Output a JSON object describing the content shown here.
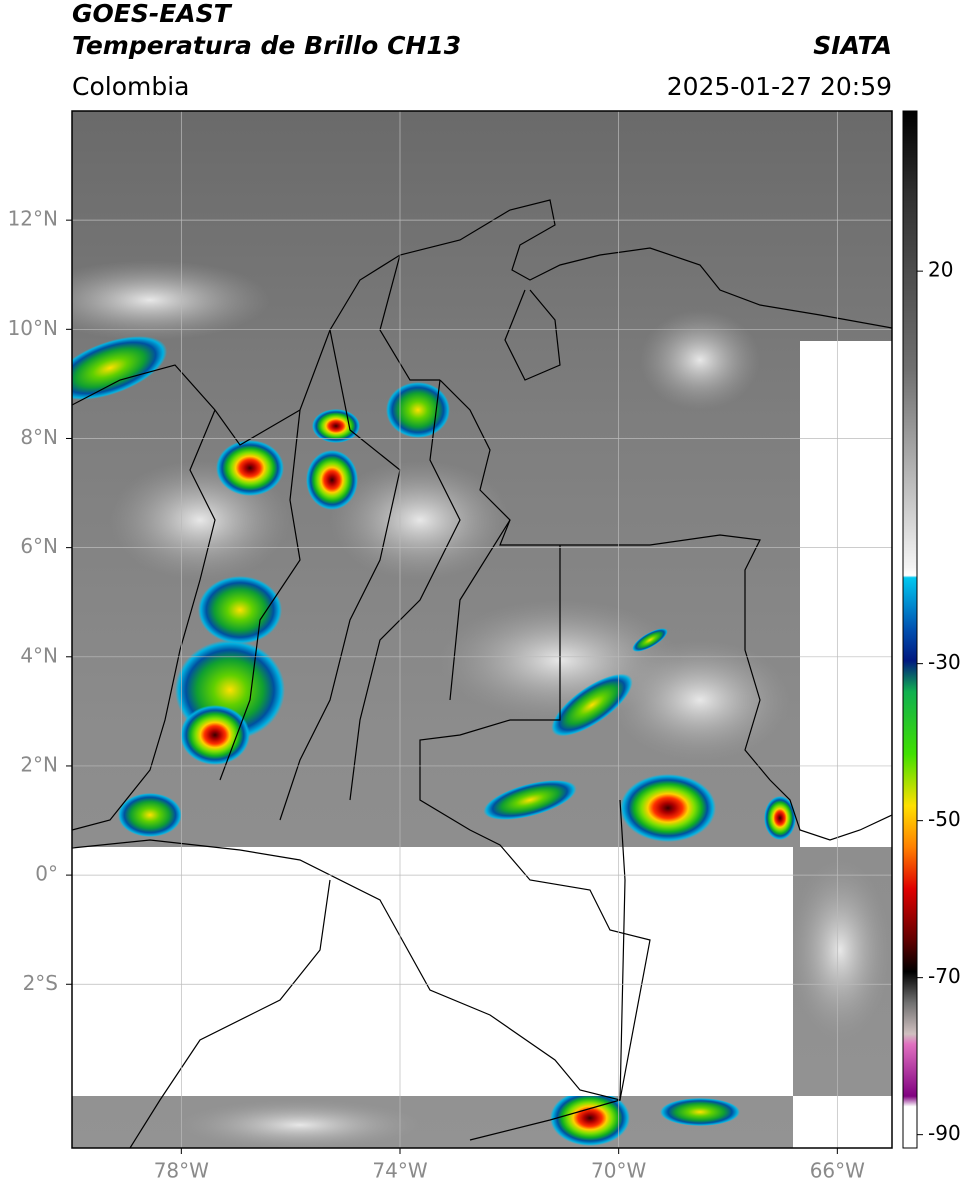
{
  "header": {
    "title": "GOES-EAST",
    "subtitle": "Temperatura de Brillo CH13",
    "region": "Colombia",
    "source": "SIATA",
    "datetime": "2025-01-27 20:59"
  },
  "map": {
    "xlim": [
      -80,
      -65
    ],
    "ylim": [
      -5,
      14
    ],
    "xticks": [
      {
        "value": -78,
        "label": "78°W"
      },
      {
        "value": -74,
        "label": "74°W"
      },
      {
        "value": -70,
        "label": "70°W"
      },
      {
        "value": -66,
        "label": "66°W"
      }
    ],
    "yticks": [
      {
        "value": 12,
        "label": "12°N"
      },
      {
        "value": 10,
        "label": "10°N"
      },
      {
        "value": 8,
        "label": "8°N"
      },
      {
        "value": 6,
        "label": "6°N"
      },
      {
        "value": 4,
        "label": "4°N"
      },
      {
        "value": 2,
        "label": "2°N"
      },
      {
        "value": 0,
        "label": "0°"
      },
      {
        "value": -2,
        "label": "2°S"
      }
    ],
    "grid": true
  },
  "colorbar": {
    "ylim": [
      -91.7,
      40.4
    ],
    "yticks": [
      20,
      -30,
      -50,
      -70,
      -90
    ]
  }
}
